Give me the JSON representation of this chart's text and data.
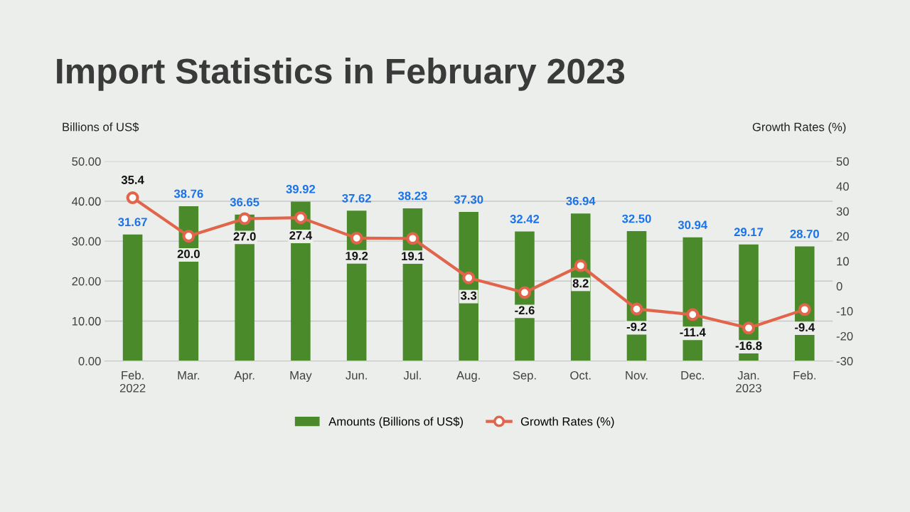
{
  "chart_data": {
    "type": "bar",
    "title": "Import Statistics in February 2023",
    "ylabel": "Billions of US$",
    "y2label": "Growth Rates (%)",
    "categories": [
      "Feb.\n2022",
      "Mar.",
      "Apr.",
      "May",
      "Jun.",
      "Jul.",
      "Aug.",
      "Sep.",
      "Oct.",
      "Nov.",
      "Dec.",
      "Jan.\n2023",
      "Feb."
    ],
    "series": [
      {
        "name": "Amounts (Billions of US$)",
        "color": "#4a8a2a",
        "values": [
          31.67,
          38.76,
          36.65,
          39.92,
          37.62,
          38.23,
          37.3,
          32.42,
          36.94,
          32.5,
          30.94,
          29.17,
          28.7
        ],
        "value_labels": [
          "31.67",
          "38.76",
          "36.65",
          "39.92",
          "37.62",
          "38.23",
          "37.30",
          "32.42",
          "36.94",
          "32.50",
          "30.94",
          "29.17",
          "28.70"
        ]
      },
      {
        "name": "Growth Rates (%)",
        "type": "line",
        "axis": "y2",
        "color": "#e0654a",
        "marker": "circle",
        "values": [
          35.4,
          20.0,
          27.0,
          27.4,
          19.2,
          19.1,
          3.3,
          -2.6,
          8.2,
          -9.2,
          -11.4,
          -16.8,
          -9.4
        ],
        "value_labels": [
          "35.4",
          "20.0",
          "27.0",
          "27.4",
          "19.2",
          "19.1",
          "3.3",
          "-2.6",
          "8.2",
          "-9.2",
          "-11.4",
          "-16.8",
          "-9.4"
        ]
      }
    ],
    "ylim": [
      0,
      50
    ],
    "yticks": [
      {
        "value": 0,
        "label": "0.00"
      },
      {
        "value": 10,
        "label": "10.00"
      },
      {
        "value": 20,
        "label": "20.00"
      },
      {
        "value": 30,
        "label": "30.00"
      },
      {
        "value": 40,
        "label": "40.00"
      },
      {
        "value": 50,
        "label": "50.00"
      }
    ],
    "y2lim": [
      -30,
      50
    ],
    "y2ticks": [
      -30,
      -20,
      -10,
      0,
      10,
      20,
      30,
      40,
      50
    ],
    "grid": "y",
    "legend": "bottom"
  }
}
